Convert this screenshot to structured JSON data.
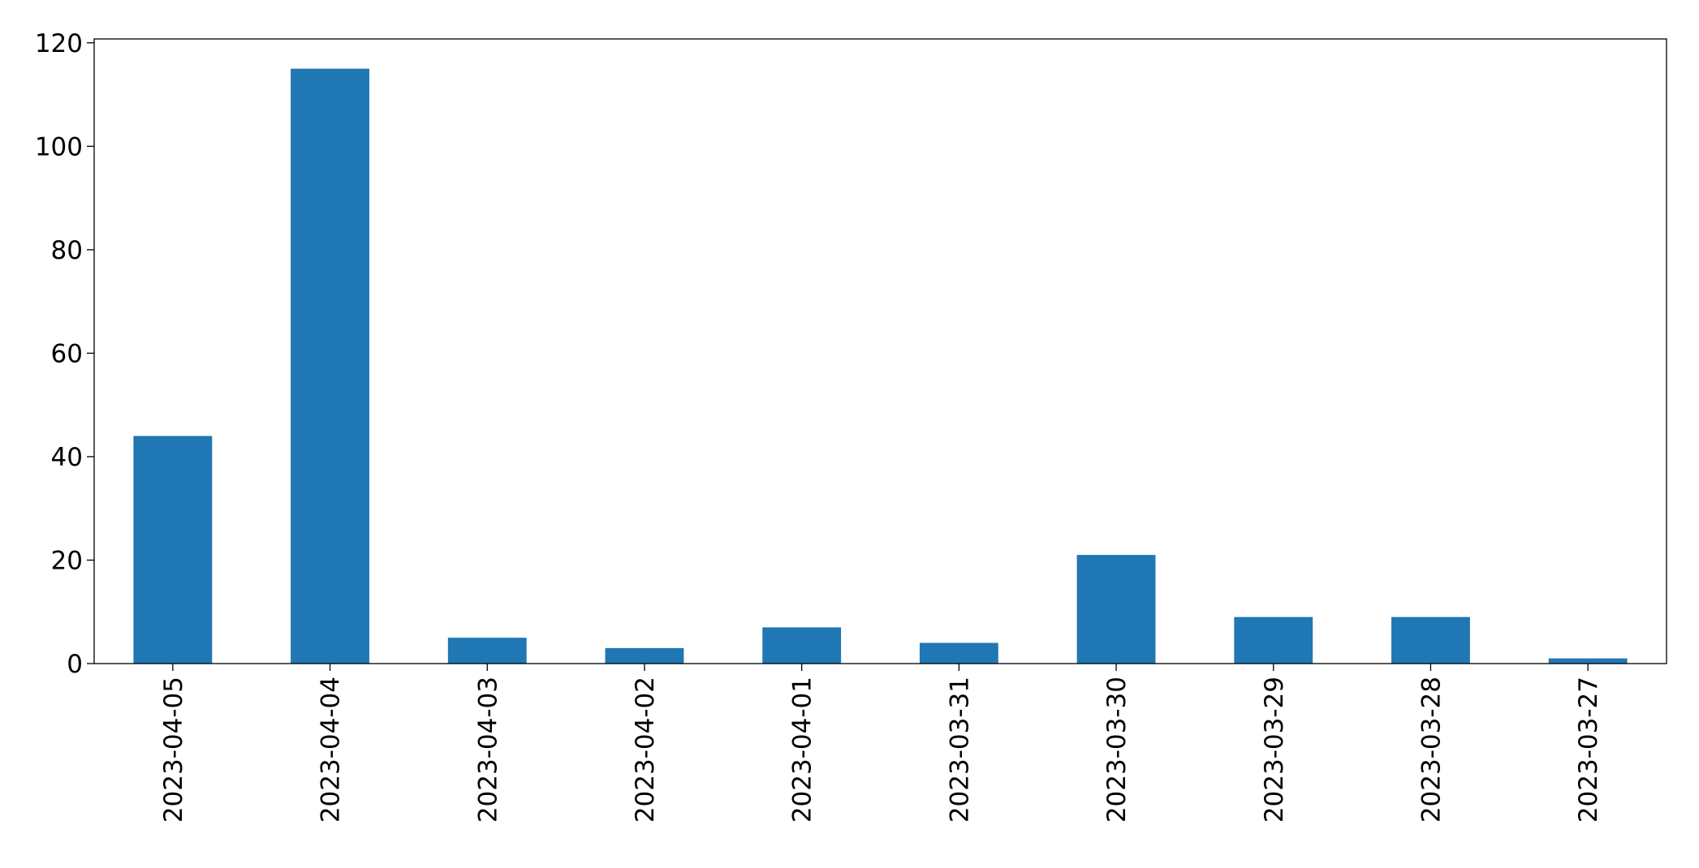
{
  "chart_data": {
    "type": "bar",
    "title": "",
    "xlabel": "",
    "ylabel": "",
    "categories": [
      "2023-04-05",
      "2023-04-04",
      "2023-04-03",
      "2023-04-02",
      "2023-04-01",
      "2023-03-31",
      "2023-03-30",
      "2023-03-29",
      "2023-03-28",
      "2023-03-27"
    ],
    "values": [
      44,
      115,
      5,
      3,
      7,
      4,
      21,
      9,
      9,
      1
    ],
    "ylim": [
      0,
      120.75
    ],
    "yticks": [
      0,
      20,
      40,
      60,
      80,
      100,
      120
    ],
    "grid": false,
    "legend": null,
    "bar_color": "#1f77b4",
    "x_tick_rotation": 90
  }
}
